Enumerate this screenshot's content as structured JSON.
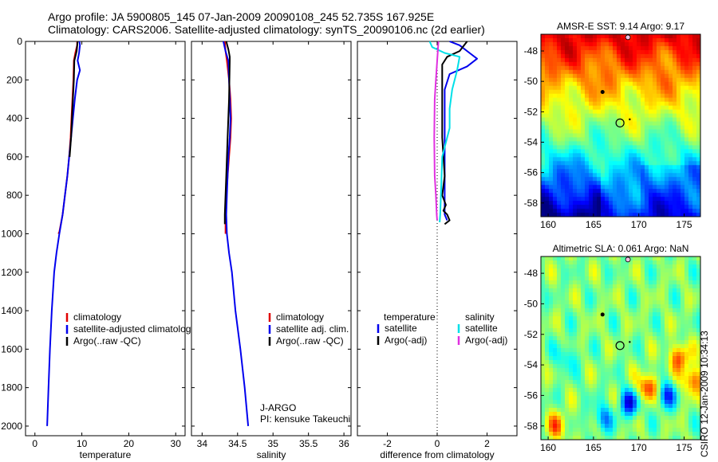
{
  "header": {
    "line1": "Argo profile: JA 5900805_145 07-Jan-2009 20090108_245 52.735S 167.925E",
    "line2": "Climatology: CARS2006. Satellite-adjusted climatology: synTS_20090106.nc (2d earlier)"
  },
  "footer": {
    "credit": "CSIRO 12-Jan-2009 10:34:13"
  },
  "colors": {
    "climatology": "#e00000",
    "satellite": "#0000ee",
    "argo": "#000000",
    "sal_satellite": "#00e0e8",
    "sal_argo": "#e030e0"
  },
  "chart_data": [
    {
      "type": "line",
      "id": "temperature",
      "xlabel": "temperature",
      "ylabel": "",
      "xlim": [
        -2,
        32
      ],
      "ylim": [
        2050,
        0
      ],
      "xticks": [
        0,
        10,
        20,
        30
      ],
      "yticks": [
        0,
        200,
        400,
        600,
        800,
        1000,
        1200,
        1400,
        1600,
        1800,
        2000
      ],
      "legend": [
        "climatology",
        "satellite-adjusted climatology",
        "Argo(..raw -QC)"
      ],
      "legend_position": "lower-right",
      "series": [
        {
          "name": "climatology",
          "color": "#e00000",
          "points": [
            [
              9.0,
              0
            ],
            [
              9.0,
              20
            ],
            [
              8.6,
              60
            ],
            [
              8.3,
              100
            ],
            [
              8.2,
              200
            ],
            [
              8.0,
              300
            ],
            [
              7.8,
              400
            ],
            [
              7.6,
              500
            ],
            [
              7.3,
              600
            ],
            [
              6.9,
              700
            ],
            [
              6.4,
              800
            ],
            [
              5.9,
              900
            ],
            [
              5.2,
              990
            ],
            [
              5.0,
              1000
            ]
          ]
        },
        {
          "name": "satellite-adjusted climatology",
          "color": "#0000ee",
          "points": [
            [
              9.5,
              0
            ],
            [
              9.6,
              20
            ],
            [
              9.4,
              60
            ],
            [
              9.1,
              100
            ],
            [
              9.6,
              150
            ],
            [
              9.0,
              200
            ],
            [
              8.5,
              300
            ],
            [
              8.1,
              400
            ],
            [
              7.7,
              500
            ],
            [
              7.3,
              600
            ],
            [
              6.9,
              700
            ],
            [
              6.4,
              800
            ],
            [
              5.9,
              900
            ],
            [
              5.2,
              1000
            ],
            [
              4.6,
              1100
            ],
            [
              4.1,
              1200
            ],
            [
              3.6,
              1400
            ],
            [
              3.2,
              1600
            ],
            [
              2.9,
              1800
            ],
            [
              2.6,
              2000
            ]
          ]
        },
        {
          "name": "Argo(..raw -QC)",
          "color": "#000000",
          "points": [
            [
              9.1,
              0
            ],
            [
              8.9,
              50
            ],
            [
              8.6,
              80
            ],
            [
              8.4,
              100
            ],
            [
              8.3,
              200
            ],
            [
              8.1,
              300
            ],
            [
              7.9,
              400
            ],
            [
              7.7,
              500
            ],
            [
              7.4,
              600
            ]
          ]
        }
      ]
    },
    {
      "type": "line",
      "id": "salinity",
      "xlabel": "salinity",
      "ylabel": "",
      "xlim": [
        33.85,
        36.1
      ],
      "ylim": [
        2050,
        0
      ],
      "xticks": [
        34,
        34.5,
        35,
        35.5,
        36
      ],
      "legend": [
        "climatology",
        "satellite adj. clim.",
        "Argo(..raw -QC)"
      ],
      "legend_position": "lower-right",
      "annotation": [
        "J-ARGO",
        "PI: kensuke Takeuchi"
      ],
      "series": [
        {
          "name": "climatology",
          "color": "#e00000",
          "points": [
            [
              34.32,
              0
            ],
            [
              34.33,
              50
            ],
            [
              34.35,
              100
            ],
            [
              34.38,
              200
            ],
            [
              34.4,
              300
            ],
            [
              34.41,
              400
            ],
            [
              34.4,
              500
            ],
            [
              34.38,
              600
            ],
            [
              34.36,
              700
            ],
            [
              34.34,
              800
            ],
            [
              34.33,
              900
            ],
            [
              34.33,
              1000
            ]
          ]
        },
        {
          "name": "satellite adj. clim.",
          "color": "#0000ee",
          "points": [
            [
              34.3,
              0
            ],
            [
              34.33,
              50
            ],
            [
              34.37,
              100
            ],
            [
              34.38,
              200
            ],
            [
              34.39,
              300
            ],
            [
              34.4,
              400
            ],
            [
              34.39,
              500
            ],
            [
              34.37,
              600
            ],
            [
              34.36,
              700
            ],
            [
              34.35,
              800
            ],
            [
              34.34,
              900
            ],
            [
              34.35,
              1000
            ],
            [
              34.38,
              1100
            ],
            [
              34.42,
              1200
            ],
            [
              34.47,
              1400
            ],
            [
              34.54,
              1600
            ],
            [
              34.6,
              1800
            ],
            [
              34.65,
              2000
            ]
          ]
        },
        {
          "name": "Argo(..raw -QC)",
          "color": "#000000",
          "points": [
            [
              34.34,
              0
            ],
            [
              34.37,
              40
            ],
            [
              34.39,
              80
            ],
            [
              34.39,
              100
            ],
            [
              34.38,
              300
            ],
            [
              34.36,
              500
            ],
            [
              34.34,
              700
            ],
            [
              34.32,
              900
            ],
            [
              34.32,
              950
            ]
          ]
        }
      ]
    },
    {
      "type": "line",
      "id": "difference",
      "xlabel": "difference from climatology",
      "ylabel": "",
      "xlim": [
        -3.2,
        3.2
      ],
      "ylim": [
        2050,
        0
      ],
      "xticks": [
        -2,
        0,
        2
      ],
      "legend_position": "lower-right",
      "legend_titles": [
        "temperature",
        "salinity"
      ],
      "legend": [
        "satellite",
        "Argo(-adj)",
        "satellite",
        "Argo(-adj)"
      ],
      "series": [
        {
          "name": "temperature satellite",
          "color": "#0000ee",
          "points": [
            [
              0.5,
              0
            ],
            [
              0.9,
              20
            ],
            [
              1.3,
              60
            ],
            [
              1.6,
              90
            ],
            [
              1.2,
              130
            ],
            [
              0.5,
              170
            ],
            [
              0.3,
              250
            ],
            [
              0.3,
              400
            ],
            [
              0.3,
              600
            ],
            [
              0.3,
              800
            ],
            [
              0.3,
              900
            ],
            [
              0.4,
              930
            ]
          ]
        },
        {
          "name": "temperature Argo(-adj)",
          "color": "#000000",
          "points": [
            [
              1.2,
              0
            ],
            [
              0.9,
              50
            ],
            [
              0.4,
              80
            ],
            [
              0.2,
              120
            ],
            [
              0.2,
              300
            ],
            [
              0.2,
              500
            ],
            [
              0.3,
              700
            ],
            [
              0.2,
              800
            ],
            [
              0.35,
              850
            ],
            [
              0.25,
              880
            ],
            [
              0.4,
              900
            ],
            [
              0.5,
              930
            ],
            [
              0.3,
              950
            ]
          ]
        },
        {
          "name": "salinity satellite",
          "color": "#00e0e8",
          "points": [
            [
              -0.3,
              0
            ],
            [
              -0.2,
              30
            ],
            [
              0.3,
              60
            ],
            [
              0.9,
              80
            ],
            [
              0.8,
              150
            ],
            [
              0.6,
              250
            ],
            [
              0.5,
              350
            ],
            [
              0.5,
              450
            ],
            [
              0.4,
              500
            ],
            [
              0.2,
              600
            ],
            [
              0.15,
              800
            ],
            [
              0.12,
              900
            ],
            [
              0.1,
              940
            ]
          ]
        },
        {
          "name": "salinity Argo(-adj)",
          "color": "#e030e0",
          "points": [
            [
              0.05,
              0
            ],
            [
              0.0,
              100
            ],
            [
              -0.05,
              200
            ],
            [
              -0.1,
              300
            ],
            [
              -0.12,
              500
            ],
            [
              -0.1,
              700
            ],
            [
              -0.05,
              800
            ],
            [
              -0.02,
              900
            ],
            [
              0.0,
              930
            ]
          ]
        }
      ]
    },
    {
      "type": "heatmap",
      "id": "sst_map",
      "title": "AMSR-E SST: 9.14 Argo: 9.17",
      "xlim": [
        159.2,
        176.8
      ],
      "ylim": [
        -58.9,
        -46.9
      ],
      "xticks": [
        160,
        165,
        170,
        175
      ],
      "yticks": [
        -48,
        -50,
        -52,
        -54,
        -56,
        -58
      ],
      "float_position": [
        167.925,
        -52.735
      ]
    },
    {
      "type": "heatmap",
      "id": "sla_map",
      "title": "Altimetric SLA: 0.061 Argo: NaN",
      "xlim": [
        159.2,
        176.8
      ],
      "ylim": [
        -58.9,
        -46.9
      ],
      "xticks": [
        160,
        165,
        170,
        175
      ],
      "yticks": [
        -48,
        -50,
        -52,
        -54,
        -56,
        -58
      ],
      "float_position": [
        167.925,
        -52.735
      ]
    }
  ]
}
